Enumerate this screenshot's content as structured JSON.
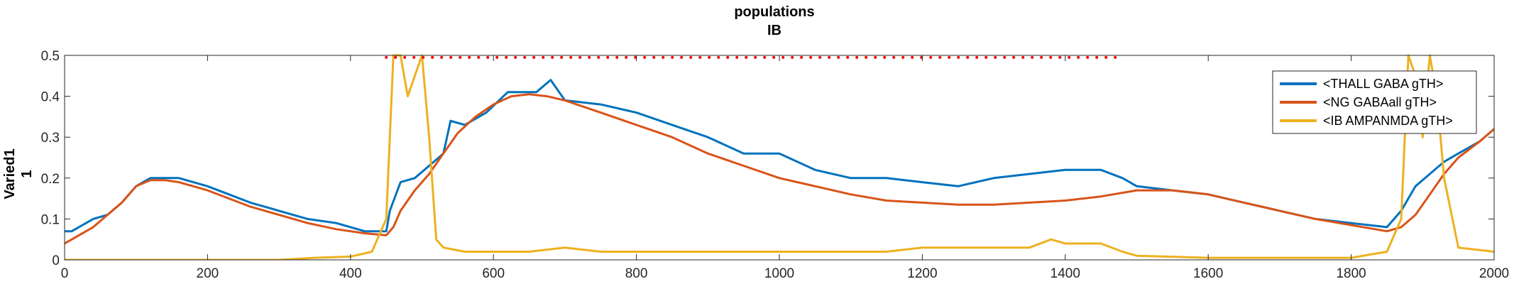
{
  "chart_data": {
    "type": "line",
    "title": [
      "populations",
      "IB"
    ],
    "ylabel": [
      "Varied1",
      "1"
    ],
    "xlabel": "",
    "xlim": [
      0,
      2000
    ],
    "ylim": [
      0,
      0.5
    ],
    "xticks": [
      0,
      200,
      400,
      600,
      800,
      1000,
      1200,
      1400,
      1600,
      1800,
      2000
    ],
    "yticks": [
      0,
      0.1,
      0.2,
      0.3,
      0.4,
      0.5
    ],
    "grid": false,
    "legend_position": "top-right",
    "series": [
      {
        "name": "<THALL GABA gTH>",
        "color": "#0072BD",
        "x": [
          0,
          10,
          20,
          30,
          40,
          60,
          80,
          100,
          120,
          140,
          160,
          180,
          200,
          230,
          260,
          300,
          340,
          380,
          420,
          450,
          455,
          470,
          490,
          510,
          530,
          540,
          560,
          590,
          620,
          660,
          680,
          700,
          750,
          800,
          850,
          900,
          950,
          1000,
          1050,
          1100,
          1150,
          1200,
          1250,
          1300,
          1350,
          1400,
          1450,
          1480,
          1500,
          1550,
          1600,
          1650,
          1700,
          1750,
          1800,
          1850,
          1870,
          1890,
          1910,
          1930,
          1950,
          1980,
          2000
        ],
        "y": [
          0.07,
          0.07,
          0.08,
          0.09,
          0.1,
          0.11,
          0.14,
          0.18,
          0.2,
          0.2,
          0.2,
          0.19,
          0.18,
          0.16,
          0.14,
          0.12,
          0.1,
          0.09,
          0.07,
          0.07,
          0.12,
          0.19,
          0.2,
          0.23,
          0.26,
          0.34,
          0.33,
          0.36,
          0.41,
          0.41,
          0.44,
          0.39,
          0.38,
          0.36,
          0.33,
          0.3,
          0.26,
          0.26,
          0.22,
          0.2,
          0.2,
          0.19,
          0.18,
          0.2,
          0.21,
          0.22,
          0.22,
          0.2,
          0.18,
          0.17,
          0.16,
          0.14,
          0.12,
          0.1,
          0.09,
          0.08,
          0.12,
          0.18,
          0.21,
          0.24,
          0.26,
          0.29,
          0.32
        ]
      },
      {
        "name": "<NG GABAall gTH>",
        "color": "#D95319",
        "x": [
          0,
          10,
          20,
          30,
          40,
          60,
          80,
          100,
          120,
          140,
          160,
          180,
          200,
          230,
          260,
          300,
          340,
          380,
          420,
          450,
          460,
          470,
          490,
          510,
          530,
          550,
          575,
          600,
          625,
          650,
          675,
          700,
          750,
          800,
          850,
          900,
          950,
          1000,
          1050,
          1100,
          1150,
          1200,
          1250,
          1300,
          1350,
          1400,
          1450,
          1500,
          1550,
          1600,
          1650,
          1700,
          1750,
          1800,
          1850,
          1870,
          1890,
          1910,
          1930,
          1950,
          1980,
          2000
        ],
        "y": [
          0.04,
          0.05,
          0.06,
          0.07,
          0.08,
          0.11,
          0.14,
          0.18,
          0.195,
          0.195,
          0.19,
          0.18,
          0.17,
          0.15,
          0.13,
          0.11,
          0.09,
          0.075,
          0.065,
          0.06,
          0.08,
          0.12,
          0.17,
          0.21,
          0.26,
          0.31,
          0.35,
          0.38,
          0.4,
          0.405,
          0.4,
          0.39,
          0.36,
          0.33,
          0.3,
          0.26,
          0.23,
          0.2,
          0.18,
          0.16,
          0.145,
          0.14,
          0.135,
          0.135,
          0.14,
          0.145,
          0.155,
          0.17,
          0.17,
          0.16,
          0.14,
          0.12,
          0.1,
          0.085,
          0.07,
          0.08,
          0.11,
          0.16,
          0.21,
          0.25,
          0.29,
          0.32
        ]
      },
      {
        "name": "<IB AMPANMDA gTH>",
        "color": "#EDB120",
        "x": [
          0,
          100,
          200,
          300,
          350,
          400,
          430,
          450,
          460,
          470,
          480,
          490,
          500,
          510,
          520,
          530,
          560,
          600,
          650,
          700,
          750,
          800,
          850,
          900,
          950,
          1000,
          1050,
          1100,
          1150,
          1200,
          1250,
          1300,
          1350,
          1380,
          1400,
          1420,
          1450,
          1480,
          1500,
          1600,
          1700,
          1800,
          1850,
          1870,
          1880,
          1890,
          1900,
          1910,
          1920,
          1930,
          1950,
          2000
        ],
        "y": [
          0.0,
          0.0,
          0.0,
          0.0,
          0.005,
          0.008,
          0.02,
          0.1,
          0.5,
          0.5,
          0.4,
          0.45,
          0.5,
          0.3,
          0.05,
          0.03,
          0.02,
          0.02,
          0.02,
          0.03,
          0.02,
          0.02,
          0.02,
          0.02,
          0.02,
          0.02,
          0.02,
          0.02,
          0.02,
          0.03,
          0.03,
          0.03,
          0.03,
          0.05,
          0.04,
          0.04,
          0.04,
          0.02,
          0.01,
          0.005,
          0.005,
          0.005,
          0.02,
          0.1,
          0.5,
          0.45,
          0.3,
          0.5,
          0.4,
          0.2,
          0.03,
          0.02
        ]
      },
      {
        "name": "",
        "color": "#ff0000",
        "style": "dotted",
        "x": [
          450,
          1480
        ],
        "y": [
          0.495,
          0.495
        ]
      }
    ]
  }
}
